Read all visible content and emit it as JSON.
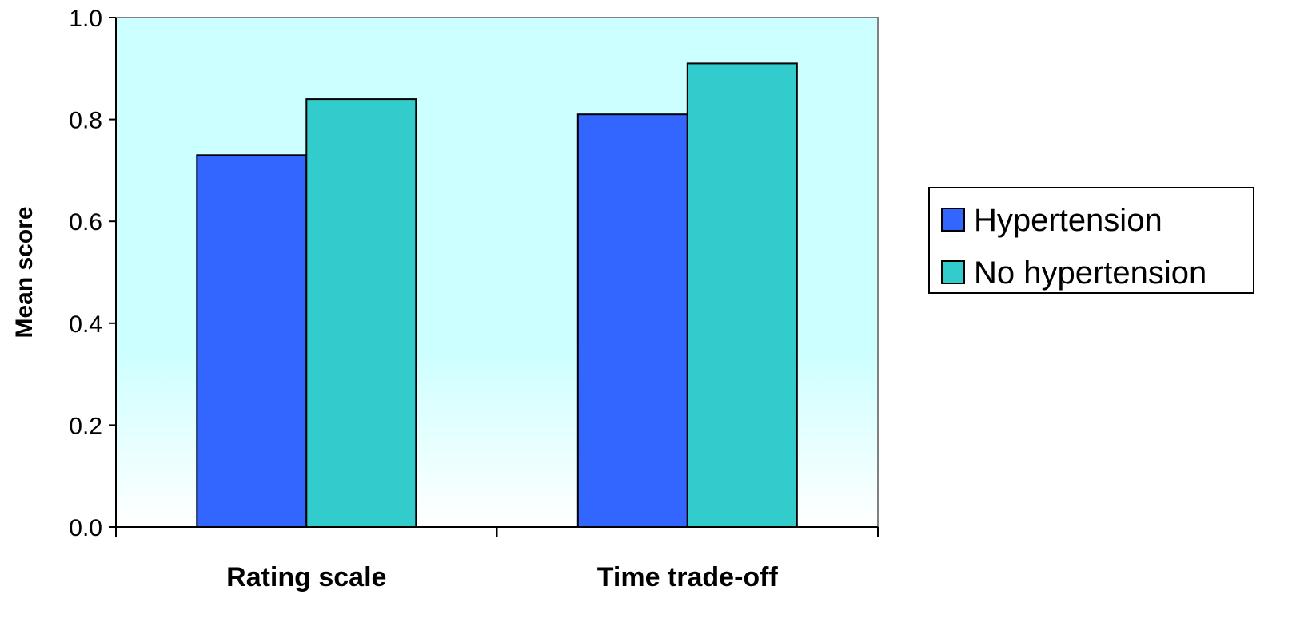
{
  "chart_data": {
    "type": "bar",
    "title": "",
    "xlabel": "",
    "ylabel": "Mean score",
    "categories": [
      "Rating scale",
      "Time trade-off"
    ],
    "series": [
      {
        "name": "Hypertension",
        "values": [
          0.73,
          0.81
        ],
        "color": "#3366ff"
      },
      {
        "name": "No hypertension",
        "values": [
          0.84,
          0.91
        ],
        "color": "#33cccc"
      }
    ],
    "ylim": [
      0.0,
      1.0
    ],
    "yticks": [
      "0.0",
      "0.2",
      "0.4",
      "0.6",
      "0.8",
      "1.0"
    ],
    "grid": false,
    "legend_position": "right",
    "plot_background": {
      "top": "#ccffff",
      "bottom": "#ffffff"
    }
  }
}
